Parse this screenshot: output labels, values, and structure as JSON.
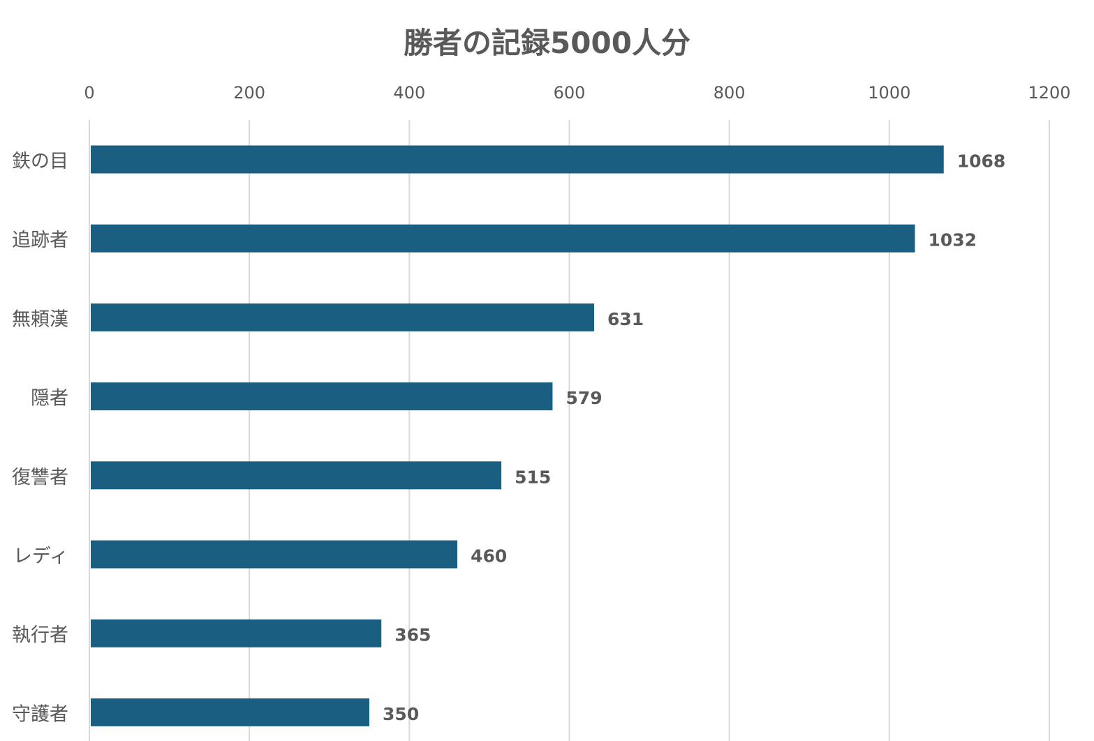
{
  "chart_data": {
    "type": "bar",
    "orientation": "horizontal",
    "title": "勝者の記録5000人分",
    "categories": [
      "鉄の目",
      "追跡者",
      "無頼漢",
      "隠者",
      "復讐者",
      "レディ",
      "執行者",
      "守護者"
    ],
    "values": [
      1068,
      1032,
      631,
      579,
      515,
      460,
      365,
      350
    ],
    "xlim": [
      0,
      1200
    ],
    "x_ticks": [
      0,
      200,
      400,
      600,
      800,
      1000,
      1200
    ],
    "x_axis_position": "top",
    "grid": true,
    "data_labels": true,
    "bar_color": "#1a5f82",
    "grid_color": "#d9d9d9",
    "text_color": "#595959"
  }
}
